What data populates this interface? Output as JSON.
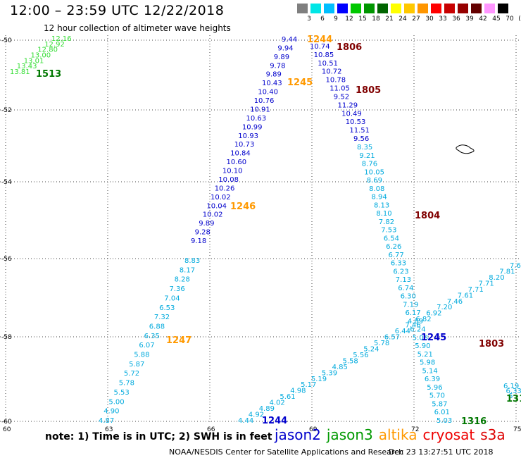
{
  "header": {
    "title": "12:00 – 23:59 UTC 12/22/2018",
    "subtitle": "12 hour collection of altimeter wave heights"
  },
  "colorbar": {
    "unit": "(ft)",
    "items": [
      {
        "label": "3",
        "color": "#7f7f7f"
      },
      {
        "label": "6",
        "color": "#00e6e6"
      },
      {
        "label": "9",
        "color": "#00bfff"
      },
      {
        "label": "12",
        "color": "#0000ff"
      },
      {
        "label": "15",
        "color": "#00c800"
      },
      {
        "label": "18",
        "color": "#009600"
      },
      {
        "label": "21",
        "color": "#006400"
      },
      {
        "label": "24",
        "color": "#ffff00"
      },
      {
        "label": "27",
        "color": "#ffc800"
      },
      {
        "label": "30",
        "color": "#ff9600"
      },
      {
        "label": "33",
        "color": "#ff0000"
      },
      {
        "label": "36",
        "color": "#c80000"
      },
      {
        "label": "39",
        "color": "#960000"
      },
      {
        "label": "42",
        "color": "#640000"
      },
      {
        "label": "45",
        "color": "#ff96ff"
      },
      {
        "label": "70",
        "color": "#000000"
      }
    ]
  },
  "axes": {
    "lat_labels": [
      "-50",
      "-52",
      "-54",
      "-56",
      "-58",
      "-60"
    ],
    "lon_labels": [
      "60",
      "63",
      "66",
      "69",
      "72",
      "75"
    ]
  },
  "tracks": [
    {
      "name": "asc_left_jason3",
      "color": "#33dd33",
      "values": [
        "12.16",
        "12.92",
        "12.80",
        "13.00",
        "13.01",
        "13.43",
        "13.81"
      ]
    },
    {
      "name": "desc_jason2",
      "color": "#0000cc",
      "values": [
        "9.44",
        "9.94",
        "9.89",
        "9.78",
        "9.89",
        "10.43",
        "10.40",
        "10.76",
        "10.91",
        "10.63",
        "10.99",
        "10.93",
        "10.73",
        "10.84",
        "10.60",
        "10.10",
        "10.08",
        "10.26",
        "10.02",
        "10.04",
        "10.02",
        "9.89",
        "9.28",
        "9.18"
      ]
    },
    {
      "name": "desc_jason2_tail",
      "color": "#00aadd",
      "values": [
        "8.83",
        "8.17",
        "8.28",
        "7.36",
        "7.04",
        "6.53",
        "7.32",
        "6.88",
        "6.35",
        "6.07",
        "5.88",
        "5.87",
        "5.72",
        "5.78",
        "5.53",
        "5.00",
        "4.90",
        "4.87"
      ]
    },
    {
      "name": "desc_right_blue",
      "color": "#0000cc",
      "values": [
        "10.74",
        "10.85",
        "10.51",
        "10.72",
        "10.78",
        "11.05",
        "9.52",
        "11.29",
        "10.49",
        "10.53",
        "11.51",
        "9.56"
      ]
    },
    {
      "name": "desc_right_cyan",
      "color": "#00aadd",
      "values": [
        "8.35",
        "9.21",
        "8.76",
        "10.05",
        "8.69",
        "8.08",
        "8.94",
        "8.13",
        "8.10",
        "7.82",
        "7.53",
        "6.54",
        "6.26",
        "6.77",
        "6.33",
        "6.23",
        "7.13",
        "6.74",
        "6.30",
        "7.19",
        "6.17",
        "4.89",
        "6.24",
        "5.08",
        "5.90",
        "5.21",
        "5.98",
        "5.14",
        "6.39",
        "5.96",
        "5.70",
        "5.87",
        "6.01",
        "5.03"
      ]
    },
    {
      "name": "asc_cross",
      "color": "#00aadd",
      "values": [
        "4.44",
        "4.92",
        "4.89",
        "4.02",
        "5.61",
        "4.98",
        "5.17",
        "5.19",
        "5.39",
        "4.85",
        "5.58",
        "5.56",
        "5.24",
        "5.78",
        "6.57",
        "6.44",
        "7.46",
        "6.82",
        "6.92",
        "7.20",
        "7.46",
        "7.61",
        "7.71",
        "7.71",
        "8.20",
        "7.81",
        "7.6"
      ]
    },
    {
      "name": "right_edge",
      "color": "#00aadd",
      "values": [
        "6.19",
        "6.33",
        "6"
      ]
    }
  ],
  "time_labels": [
    {
      "text": "1244",
      "color": "#ff9900"
    },
    {
      "text": "1806",
      "color": "#800000"
    },
    {
      "text": "1513",
      "color": "#007700"
    },
    {
      "text": "1245",
      "color": "#ff9900"
    },
    {
      "text": "1805",
      "color": "#800000"
    },
    {
      "text": "1246",
      "color": "#ff9900"
    },
    {
      "text": "1804",
      "color": "#800000"
    },
    {
      "text": "1247",
      "color": "#ff9900"
    },
    {
      "text": "1245",
      "color": "#0000cc"
    },
    {
      "text": "1803",
      "color": "#800000"
    },
    {
      "text": "1244",
      "color": "#0000cc"
    },
    {
      "text": "1316",
      "color": "#007700"
    },
    {
      "text": "131",
      "color": "#007700"
    }
  ],
  "note": "note: 1) Time is in UTC; 2) SWH is in feet",
  "legend": [
    {
      "label": "jason2",
      "color": "#0000cc"
    },
    {
      "label": "jason3",
      "color": "#009900"
    },
    {
      "label": "altika",
      "color": "#ff9900"
    },
    {
      "label": "cryosat",
      "color": "#ee0000"
    },
    {
      "label": "s3a",
      "color": "#dd0000"
    }
  ],
  "footer": {
    "left": "NOAA/NESDIS Center for Satellite Applications and Research",
    "right": "Dec 23 13:27:51 UTC 2018"
  }
}
